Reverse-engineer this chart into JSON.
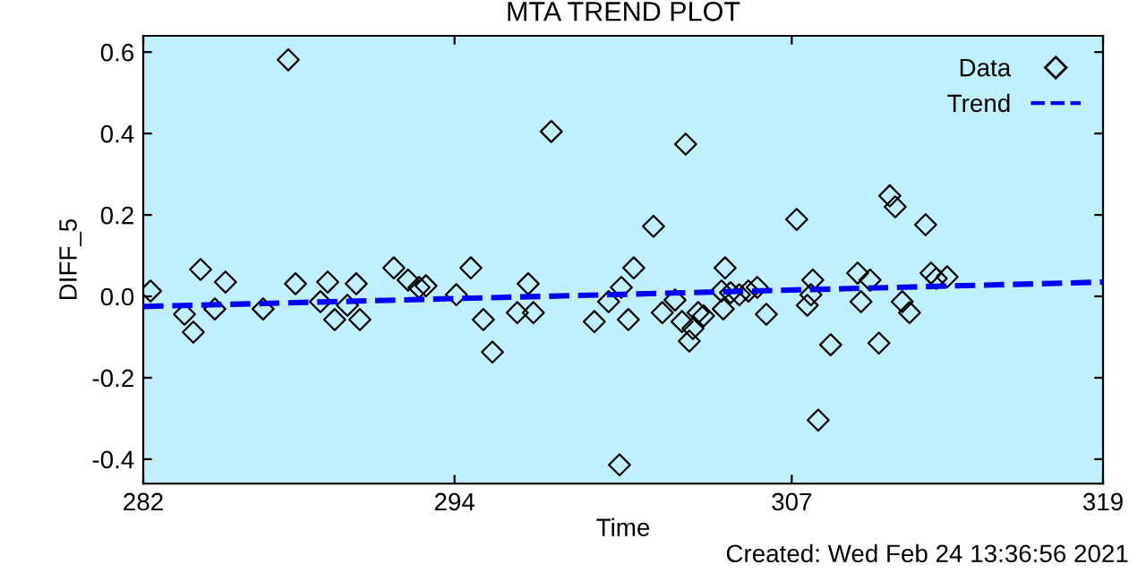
{
  "chart_data": {
    "type": "scatter",
    "title": "MTA TREND PLOT",
    "xlabel": "Time",
    "ylabel": "DIFF_5",
    "annotations": [
      "Created: Wed Feb 24 13:36:56 2021"
    ],
    "xlim": [
      282,
      319
    ],
    "xticks": [
      282,
      294,
      307,
      319
    ],
    "ylim": [
      -0.46,
      0.64
    ],
    "yticks": [
      {
        "value": -0.4,
        "label": "-0.4"
      },
      {
        "value": -0.2,
        "label": "-0.2"
      },
      {
        "value": 0,
        "label": "0.0"
      },
      {
        "value": 0.2,
        "label": "0.2"
      },
      {
        "value": 0.4,
        "label": "0.4"
      },
      {
        "value": 0.6,
        "label": "0.6"
      }
    ],
    "grid": false,
    "legend": "top right",
    "series": [
      {
        "name": "Data",
        "color": "#000000",
        "marker": "diamond",
        "x": [
          282.28,
          283.59,
          283.93,
          284.21,
          284.76,
          285.17,
          286.62,
          287.59,
          287.87,
          288.83,
          289.11,
          289.38,
          289.87,
          290.21,
          290.35,
          291.66,
          292.21,
          292.63,
          292.9,
          294.07,
          294.63,
          295.11,
          295.46,
          296.42,
          296.84,
          297.04,
          297.73,
          299.39,
          299.94,
          300.36,
          300.43,
          300.7,
          300.91,
          301.67,
          302.01,
          302.5,
          302.77,
          302.91,
          303.05,
          303.19,
          303.39,
          303.6,
          304.29,
          304.36,
          304.43,
          304.64,
          304.98,
          305.33,
          305.67,
          306.02,
          307.19,
          307.6,
          307.74,
          307.81,
          308.02,
          308.5,
          309.54,
          309.67,
          310.02,
          310.36,
          310.78,
          310.99,
          311.26,
          311.54,
          312.16,
          312.37,
          312.57,
          312.99
        ],
        "values": [
          0.013,
          -0.044,
          -0.088,
          0.066,
          -0.031,
          0.035,
          -0.031,
          0.581,
          0.031,
          -0.013,
          0.035,
          -0.057,
          -0.022,
          0.031,
          -0.057,
          0.07,
          0.04,
          0.022,
          0.026,
          0.004,
          0.07,
          -0.057,
          -0.137,
          -0.04,
          0.031,
          -0.04,
          0.405,
          -0.062,
          -0.013,
          -0.414,
          0.022,
          -0.057,
          0.07,
          0.172,
          -0.04,
          -0.009,
          -0.062,
          0.374,
          -0.11,
          -0.079,
          -0.04,
          -0.048,
          0.013,
          -0.031,
          0.07,
          0.009,
          0.004,
          0.013,
          0.022,
          -0.044,
          0.189,
          -0.022,
          0.004,
          0.04,
          -0.304,
          -0.119,
          0.057,
          -0.013,
          0.04,
          -0.115,
          0.247,
          0.22,
          -0.013,
          -0.04,
          0.176,
          0.057,
          0.044,
          0.048
        ]
      },
      {
        "name": "Trend",
        "type": "line",
        "color": "#0000ff",
        "line_style": "dashed",
        "x": [
          282,
          319
        ],
        "values": [
          -0.025,
          0.035
        ]
      }
    ]
  }
}
